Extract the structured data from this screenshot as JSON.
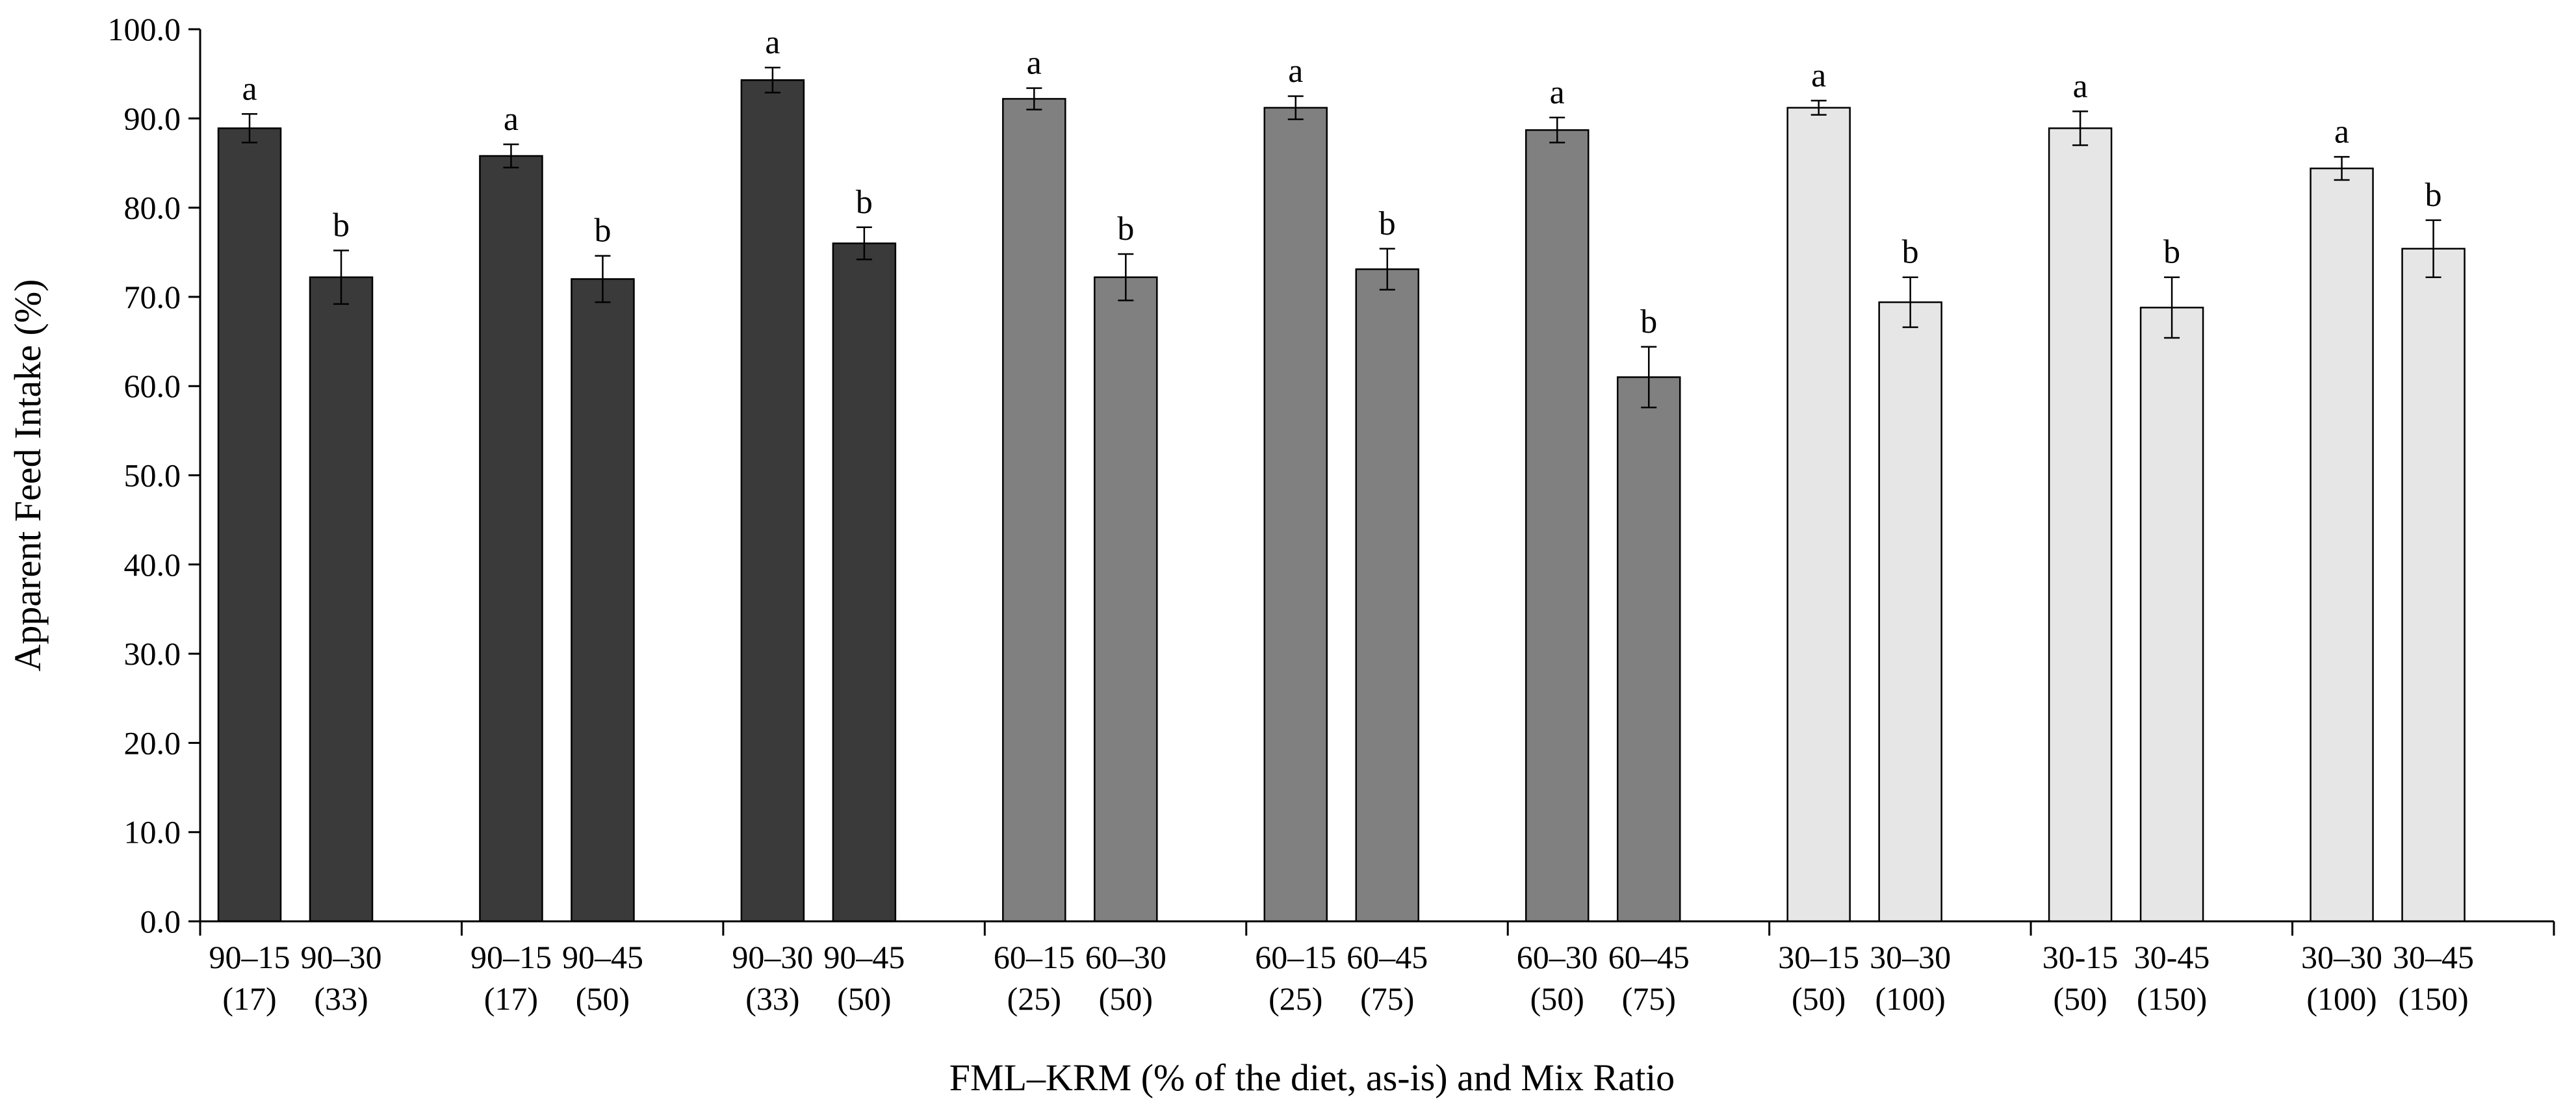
{
  "chart_data": {
    "type": "bar",
    "title": "",
    "xlabel": "FML–KRM (% of the diet, as-is) and Mix Ratio",
    "ylabel": "Apparent Feed Intake (%)",
    "ylim": [
      0,
      100
    ],
    "yticks": [
      "0.0",
      "10.0",
      "20.0",
      "30.0",
      "40.0",
      "50.0",
      "60.0",
      "70.0",
      "80.0",
      "90.0",
      "100.0"
    ],
    "grid": false,
    "colors": {
      "dark": "#3a3a3a",
      "mid": "#808080",
      "light": "#e6e6e6",
      "stroke": "#000000"
    },
    "groups": [
      {
        "bars": [
          {
            "line1": "90–15",
            "line2": "(17)",
            "value": 88.9,
            "err": 1.6,
            "sig": "a",
            "shade": "dark"
          },
          {
            "line1": "90–30",
            "line2": "(33)",
            "value": 72.2,
            "err": 3.0,
            "sig": "b",
            "shade": "dark"
          }
        ]
      },
      {
        "bars": [
          {
            "line1": "90–15",
            "line2": "(17)",
            "value": 85.8,
            "err": 1.3,
            "sig": "a",
            "shade": "dark"
          },
          {
            "line1": "90–45",
            "line2": "(50)",
            "value": 72.0,
            "err": 2.6,
            "sig": "b",
            "shade": "dark"
          }
        ]
      },
      {
        "bars": [
          {
            "line1": "90–30",
            "line2": "(33)",
            "value": 94.3,
            "err": 1.4,
            "sig": "a",
            "shade": "dark"
          },
          {
            "line1": "90–45",
            "line2": "(50)",
            "value": 76.0,
            "err": 1.8,
            "sig": "b",
            "shade": "dark"
          }
        ]
      },
      {
        "bars": [
          {
            "line1": "60–15",
            "line2": "(25)",
            "value": 92.2,
            "err": 1.2,
            "sig": "a",
            "shade": "mid"
          },
          {
            "line1": "60–30",
            "line2": "(50)",
            "value": 72.2,
            "err": 2.6,
            "sig": "b",
            "shade": "mid"
          }
        ]
      },
      {
        "bars": [
          {
            "line1": "60–15",
            "line2": "(25)",
            "value": 91.2,
            "err": 1.3,
            "sig": "a",
            "shade": "mid"
          },
          {
            "line1": "60–45",
            "line2": "(75)",
            "value": 73.1,
            "err": 2.3,
            "sig": "b",
            "shade": "mid"
          }
        ]
      },
      {
        "bars": [
          {
            "line1": "60–30",
            "line2": "(50)",
            "value": 88.7,
            "err": 1.4,
            "sig": "a",
            "shade": "mid"
          },
          {
            "line1": "60–45",
            "line2": "(75)",
            "value": 61.0,
            "err": 3.4,
            "sig": "b",
            "shade": "mid"
          }
        ]
      },
      {
        "bars": [
          {
            "line1": "30–15",
            "line2": "(50)",
            "value": 91.2,
            "err": 0.8,
            "sig": "a",
            "shade": "light"
          },
          {
            "line1": "30–30",
            "line2": "(100)",
            "value": 69.4,
            "err": 2.8,
            "sig": "b",
            "shade": "light"
          }
        ]
      },
      {
        "bars": [
          {
            "line1": "30-15",
            "line2": "(50)",
            "value": 88.9,
            "err": 1.9,
            "sig": "a",
            "shade": "light"
          },
          {
            "line1": "30-45",
            "line2": "(150)",
            "value": 68.8,
            "err": 3.4,
            "sig": "b",
            "shade": "light"
          }
        ]
      },
      {
        "bars": [
          {
            "line1": "30–30",
            "line2": "(100)",
            "value": 84.4,
            "err": 1.3,
            "sig": "a",
            "shade": "light"
          },
          {
            "line1": "30–45",
            "line2": "(150)",
            "value": 75.4,
            "err": 3.2,
            "sig": "b",
            "shade": "light"
          }
        ]
      }
    ]
  }
}
